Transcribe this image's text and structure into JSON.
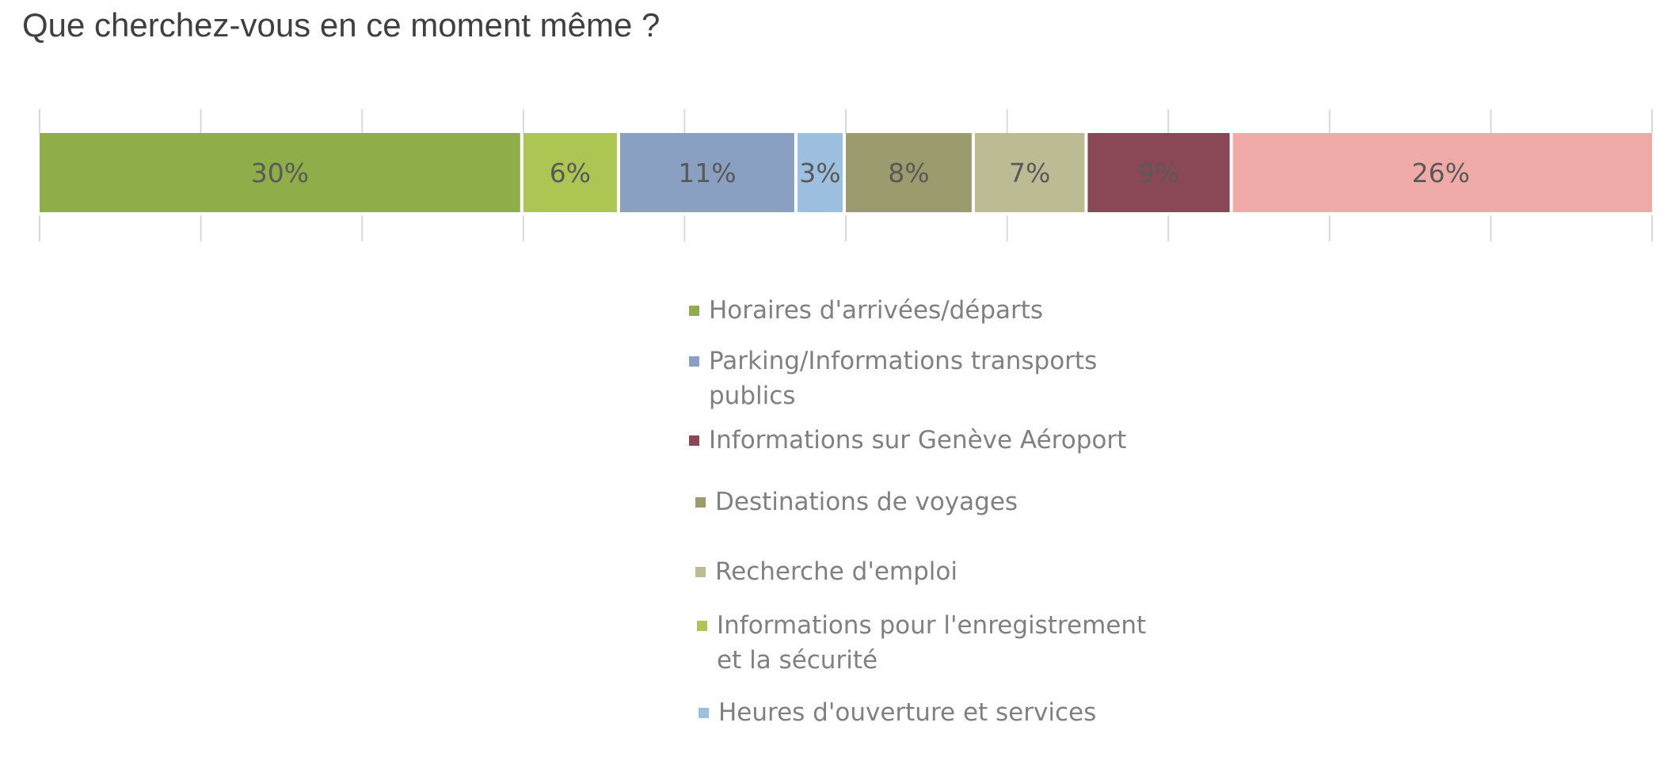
{
  "chart_data": {
    "type": "bar",
    "orientation": "horizontal-stacked-100",
    "title": "Que cherchez-vous en ce moment même ?",
    "xlim": [
      0,
      100
    ],
    "grid": false,
    "legend_position": "bottom-center",
    "series": [
      {
        "name": "Horaires d'arrivées/départs",
        "value": 30,
        "label": "30%",
        "color": "#8fad48"
      },
      {
        "name": "Informations pour l'enregistrement et la sécurité",
        "value": 6,
        "label": "6%",
        "color": "#adc653"
      },
      {
        "name": "Parking/Informations transports publics",
        "value": 11,
        "label": "11%",
        "color": "#8aa0c2"
      },
      {
        "name": "Heures d'ouverture et services",
        "value": 3,
        "label": "3%",
        "color": "#9ec0e0"
      },
      {
        "name": "Destinations de voyages",
        "value": 8,
        "label": "8%",
        "color": "#9b9b6d"
      },
      {
        "name": "Recherche d'emploi",
        "value": 7,
        "label": "7%",
        "color": "#bcbb94"
      },
      {
        "name": "Informations sur Genève Aéroport",
        "value": 9,
        "label": "9%",
        "color": "#8a4756"
      },
      {
        "name": "",
        "value": 26,
        "label": "26%",
        "color": "#f0aba9"
      }
    ],
    "legend_order": [
      0,
      2,
      6,
      4,
      5,
      1,
      3
    ]
  }
}
